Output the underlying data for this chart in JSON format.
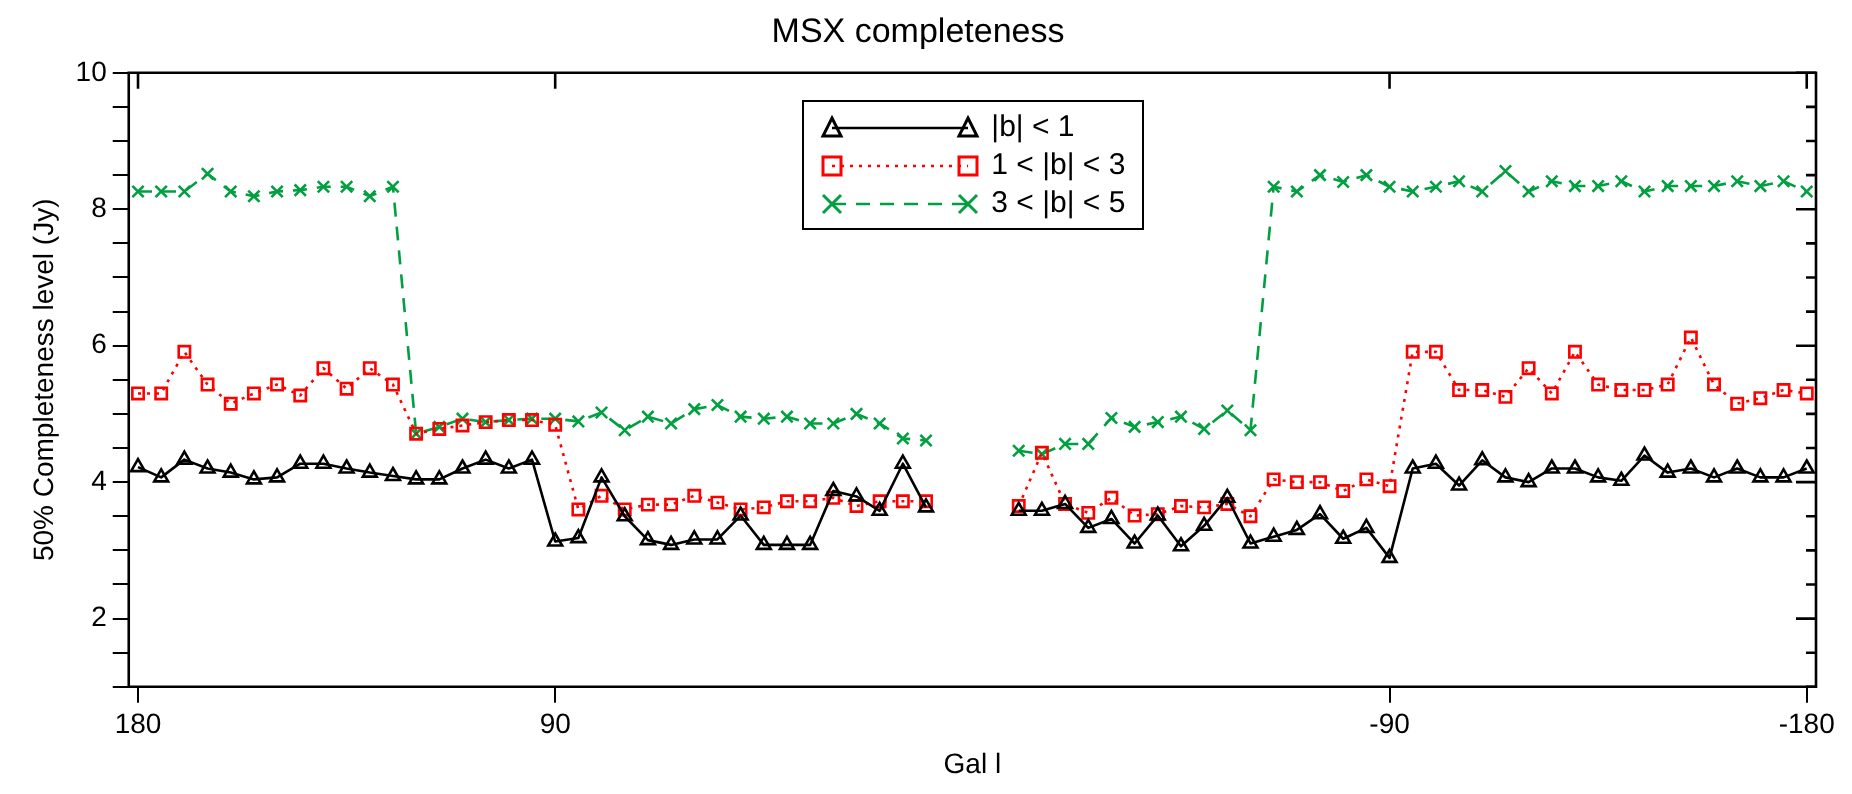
{
  "chart_data": {
    "type": "line",
    "title": "MSX completeness",
    "xlabel": "Gal l",
    "ylabel": "50% Completeness level (Jy)",
    "x": [
      180,
      175,
      170,
      165,
      160,
      155,
      150,
      145,
      140,
      135,
      130,
      125,
      120,
      115,
      110,
      105,
      100,
      95,
      90,
      85,
      80,
      75,
      70,
      65,
      60,
      55,
      50,
      45,
      40,
      35,
      30,
      25,
      20,
      15,
      10,
      0,
      -10,
      -15,
      -20,
      -25,
      -30,
      -35,
      -40,
      -45,
      -50,
      -55,
      -60,
      -65,
      -70,
      -75,
      -80,
      -85,
      -90,
      -95,
      -100,
      -105,
      -110,
      -115,
      -120,
      -125,
      -130,
      -135,
      -140,
      -145,
      -150,
      -155,
      -160,
      -165,
      -170,
      -175,
      -180
    ],
    "xlim": [
      182,
      -182
    ],
    "xticks": [
      180,
      90,
      -90,
      -180
    ],
    "ylim": [
      1,
      10
    ],
    "yticks": [
      {
        "value": 1,
        "label": null
      },
      {
        "value": 1.5,
        "label": null
      },
      2,
      {
        "value": 2.5,
        "label": null
      },
      {
        "value": 3,
        "label": null
      },
      {
        "value": 3.5,
        "label": null
      },
      4,
      {
        "value": 4.5,
        "label": null
      },
      {
        "value": 5,
        "label": null
      },
      {
        "value": 5.5,
        "label": null
      },
      6,
      {
        "value": 6.5,
        "label": null
      },
      {
        "value": 7,
        "label": null
      },
      {
        "value": 7.5,
        "label": null
      },
      8,
      {
        "value": 8.5,
        "label": null
      },
      {
        "value": 9,
        "label": null
      },
      {
        "value": 9.5,
        "label": null
      },
      10
    ],
    "grid": false,
    "legend": "top",
    "series": [
      {
        "name": "|b| < 1",
        "color": "#000000",
        "marker": "triangle",
        "line_style": "solid",
        "values": [
          4.22,
          4.07,
          4.33,
          4.2,
          4.14,
          4.04,
          4.07,
          4.27,
          4.27,
          4.2,
          4.14,
          4.09,
          4.04,
          4.04,
          4.2,
          4.33,
          4.2,
          4.33,
          3.13,
          3.18,
          4.07,
          3.5,
          3.15,
          3.08,
          3.16,
          3.16,
          3.51,
          3.08,
          3.08,
          3.08,
          3.87,
          3.79,
          3.58,
          4.27,
          3.63,
          null,
          3.58,
          3.58,
          3.68,
          3.33,
          3.46,
          3.1,
          3.51,
          3.06,
          3.36,
          3.77,
          3.1,
          3.2,
          3.3,
          3.53,
          3.17,
          3.33,
          2.89,
          4.2,
          4.27,
          3.95,
          4.32,
          4.07,
          4.0,
          4.2,
          4.2,
          4.07,
          4.02,
          4.39,
          4.14,
          4.2,
          4.07,
          4.2,
          4.07,
          4.07,
          4.2
        ]
      },
      {
        "name": "1 < |b| < 3",
        "color": "#ff0000",
        "marker": "square",
        "line_style": "dotted",
        "values": [
          5.3,
          5.3,
          5.91,
          5.43,
          5.15,
          5.3,
          5.43,
          5.27,
          5.67,
          5.37,
          5.67,
          5.43,
          4.71,
          4.78,
          4.83,
          4.88,
          4.91,
          4.91,
          4.84,
          3.6,
          3.8,
          3.6,
          3.67,
          3.67,
          3.8,
          3.7,
          3.6,
          3.63,
          3.72,
          3.72,
          3.77,
          3.65,
          3.72,
          3.72,
          3.72,
          null,
          3.65,
          4.43,
          3.68,
          3.55,
          3.77,
          3.51,
          3.53,
          3.65,
          3.63,
          3.68,
          3.5,
          4.04,
          4.0,
          4.0,
          3.87,
          4.04,
          3.94,
          5.91,
          5.91,
          5.35,
          5.35,
          5.25,
          5.67,
          5.3,
          5.91,
          5.43,
          5.35,
          5.35,
          5.43,
          6.12,
          5.43,
          5.15,
          5.23,
          5.35,
          5.3
        ]
      },
      {
        "name": "3 < |b| < 5",
        "color": "#00a040",
        "marker": "cross",
        "line_style": "dashed",
        "values": [
          8.26,
          8.26,
          8.26,
          8.52,
          8.26,
          8.19,
          8.26,
          8.28,
          8.33,
          8.33,
          8.19,
          8.33,
          4.71,
          4.81,
          4.93,
          4.88,
          4.91,
          4.93,
          4.93,
          4.89,
          5.02,
          4.76,
          4.96,
          4.86,
          5.07,
          5.13,
          4.96,
          4.93,
          4.96,
          4.86,
          4.86,
          5.0,
          4.86,
          4.64,
          4.61,
          null,
          4.46,
          4.41,
          4.56,
          4.56,
          4.94,
          4.81,
          4.88,
          4.96,
          4.78,
          5.05,
          4.76,
          8.33,
          8.26,
          8.5,
          8.4,
          8.5,
          8.33,
          8.26,
          8.33,
          8.41,
          8.26,
          8.56,
          8.26,
          8.41,
          8.34,
          8.34,
          8.41,
          8.26,
          8.34,
          8.34,
          8.34,
          8.41,
          8.34,
          8.41,
          8.26
        ]
      }
    ]
  }
}
